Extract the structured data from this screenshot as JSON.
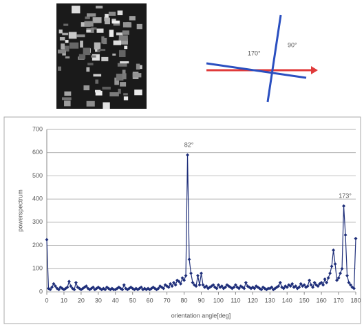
{
  "diagram": {
    "labels": [
      "170°",
      "90°"
    ]
  },
  "chart_data": {
    "type": "line",
    "x_label": "orientation angle[deg]",
    "y_label": "powerspectrum",
    "xlim": [
      0,
      180
    ],
    "xticks": [
      0,
      10,
      20,
      30,
      40,
      50,
      60,
      70,
      80,
      90,
      100,
      110,
      120,
      130,
      140,
      150,
      160,
      170,
      180
    ],
    "ylim": [
      0,
      700
    ],
    "yticks": [
      0,
      100,
      200,
      300,
      400,
      500,
      600,
      700
    ],
    "grid": true,
    "annotations": [
      {
        "text": "82°",
        "x": 82
      },
      {
        "text": "173°",
        "x": 173
      }
    ],
    "x": [
      0,
      1,
      2,
      3,
      4,
      5,
      6,
      7,
      8,
      9,
      10,
      11,
      12,
      13,
      14,
      15,
      16,
      17,
      18,
      19,
      20,
      21,
      22,
      23,
      24,
      25,
      26,
      27,
      28,
      29,
      30,
      31,
      32,
      33,
      34,
      35,
      36,
      37,
      38,
      39,
      40,
      41,
      42,
      43,
      44,
      45,
      46,
      47,
      48,
      49,
      50,
      51,
      52,
      53,
      54,
      55,
      56,
      57,
      58,
      59,
      60,
      61,
      62,
      63,
      64,
      65,
      66,
      67,
      68,
      69,
      70,
      71,
      72,
      73,
      74,
      75,
      76,
      77,
      78,
      79,
      80,
      81,
      82,
      83,
      84,
      85,
      86,
      87,
      88,
      89,
      90,
      91,
      92,
      93,
      94,
      95,
      96,
      97,
      98,
      99,
      100,
      101,
      102,
      103,
      104,
      105,
      106,
      107,
      108,
      109,
      110,
      111,
      112,
      113,
      114,
      115,
      116,
      117,
      118,
      119,
      120,
      121,
      122,
      123,
      124,
      125,
      126,
      127,
      128,
      129,
      130,
      131,
      132,
      133,
      134,
      135,
      136,
      137,
      138,
      139,
      140,
      141,
      142,
      143,
      144,
      145,
      146,
      147,
      148,
      149,
      150,
      151,
      152,
      153,
      154,
      155,
      156,
      157,
      158,
      159,
      160,
      161,
      162,
      163,
      164,
      165,
      166,
      167,
      168,
      169,
      170,
      171,
      172,
      173,
      174,
      175,
      176,
      177,
      178,
      179,
      180
    ],
    "series": [
      {
        "color": "#1f2f7a",
        "values": [
          225,
          15,
          10,
          20,
          35,
          25,
          15,
          10,
          20,
          15,
          10,
          15,
          20,
          45,
          25,
          15,
          10,
          40,
          20,
          15,
          10,
          15,
          20,
          25,
          15,
          10,
          15,
          20,
          10,
          15,
          20,
          15,
          10,
          15,
          10,
          20,
          15,
          10,
          15,
          10,
          10,
          15,
          20,
          15,
          10,
          30,
          15,
          10,
          15,
          20,
          15,
          10,
          15,
          10,
          15,
          20,
          10,
          15,
          10,
          15,
          10,
          15,
          20,
          15,
          10,
          15,
          25,
          20,
          15,
          30,
          25,
          20,
          35,
          25,
          40,
          30,
          50,
          45,
          35,
          60,
          50,
          70,
          590,
          140,
          80,
          40,
          30,
          25,
          70,
          30,
          80,
          30,
          20,
          25,
          15,
          20,
          25,
          30,
          20,
          15,
          30,
          20,
          25,
          15,
          20,
          30,
          25,
          20,
          15,
          20,
          30,
          20,
          15,
          25,
          20,
          15,
          40,
          25,
          20,
          15,
          20,
          15,
          25,
          20,
          15,
          10,
          20,
          15,
          10,
          15,
          15,
          20,
          10,
          15,
          20,
          25,
          40,
          20,
          15,
          25,
          20,
          30,
          25,
          35,
          20,
          25,
          15,
          20,
          35,
          25,
          30,
          20,
          25,
          50,
          30,
          20,
          40,
          30,
          25,
          35,
          40,
          30,
          55,
          40,
          60,
          80,
          110,
          180,
          120,
          50,
          60,
          80,
          100,
          370,
          245,
          70,
          40,
          30,
          20,
          15,
          230
        ]
      }
    ]
  }
}
